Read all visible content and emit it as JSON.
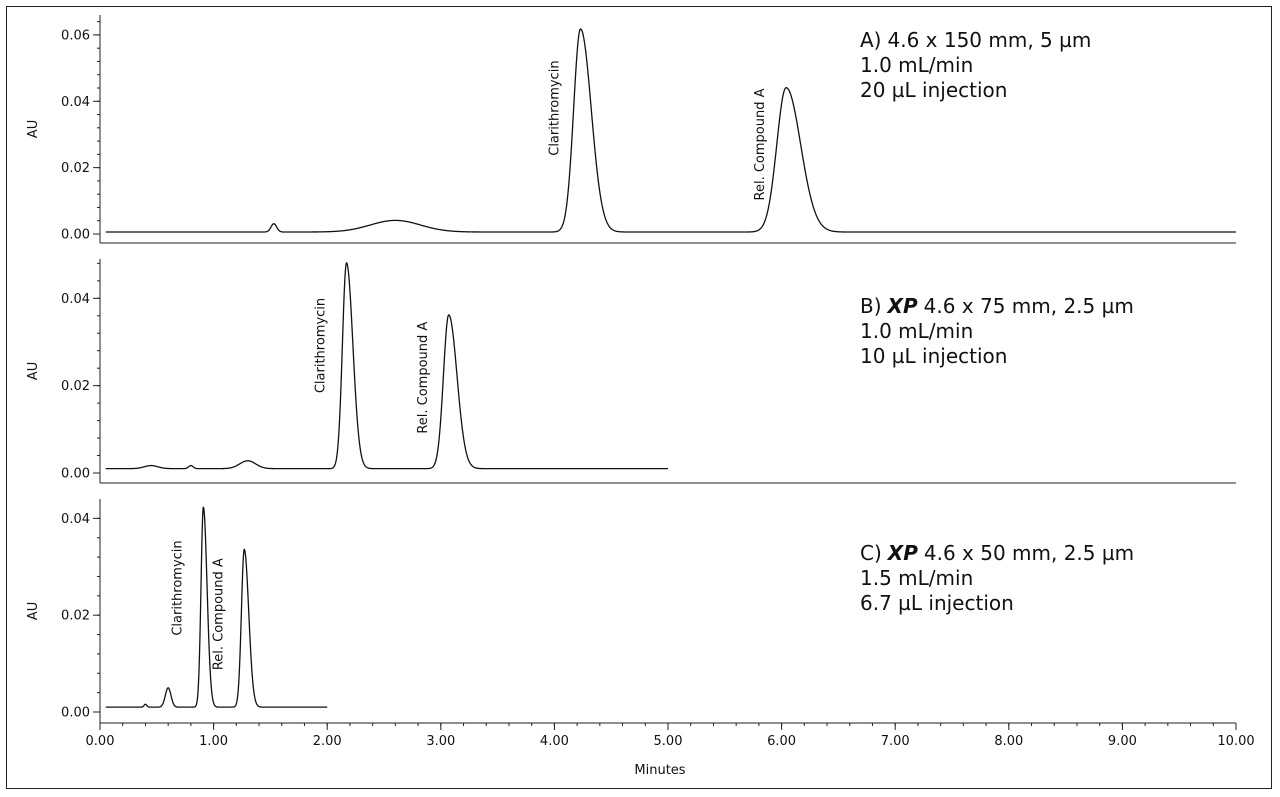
{
  "chart_data": {
    "type": "line",
    "x_axis": {
      "label": "Minutes",
      "range": [
        0,
        10
      ],
      "ticks": [
        0,
        1,
        2,
        3,
        4,
        5,
        6,
        7,
        8,
        9,
        10
      ],
      "tick_labels": [
        "0.00",
        "1.00",
        "2.00",
        "3.00",
        "4.00",
        "5.00",
        "6.00",
        "7.00",
        "8.00",
        "9.00",
        "10.00"
      ]
    },
    "panels": [
      {
        "id": "A",
        "ylabel": "AU",
        "ylim": [
          -0.002,
          0.066
        ],
        "y_ticks": [
          0,
          0.02,
          0.04,
          0.06
        ],
        "y_tick_labels": [
          "0.00",
          "0.02",
          "0.04",
          "0.06"
        ],
        "run_end": 10.0,
        "baseline": 0.0006,
        "conditions": {
          "prefix": "A)",
          "xp": "",
          "text": "4.6 x 150 mm, 5 µm",
          "flow": "1.0 mL/min",
          "injection": "20 µL injection"
        },
        "peaks": [
          {
            "name": "Clarithromycin",
            "rt": 4.23,
            "height": 0.0612
          },
          {
            "name": "Rel. Compound A",
            "rt": 6.04,
            "height": 0.0435
          }
        ],
        "minor_peaks": [
          {
            "rt": 1.53,
            "height": 0.0025,
            "width": 0.025
          },
          {
            "rt": 2.6,
            "height": 0.0035,
            "width": 0.22
          }
        ]
      },
      {
        "id": "B",
        "ylabel": "AU",
        "ylim": [
          -0.0025,
          0.049
        ],
        "y_ticks": [
          0,
          0.02,
          0.04
        ],
        "y_tick_labels": [
          "0.00",
          "0.02",
          "0.04"
        ],
        "run_end": 5.0,
        "baseline": 0.001,
        "conditions": {
          "prefix": "B)",
          "xp": "XP",
          "text": "4.6 x 75 mm, 2.5 µm",
          "flow": "1.0 mL/min",
          "injection": "10 µL injection"
        },
        "peaks": [
          {
            "name": "Clarithromycin",
            "rt": 2.17,
            "height": 0.0471
          },
          {
            "name": "Rel. Compound A",
            "rt": 3.07,
            "height": 0.0352
          }
        ],
        "minor_peaks": [
          {
            "rt": 0.45,
            "height": 0.0007,
            "width": 0.06
          },
          {
            "rt": 0.8,
            "height": 0.0007,
            "width": 0.02
          },
          {
            "rt": 1.3,
            "height": 0.0018,
            "width": 0.07
          }
        ]
      },
      {
        "id": "C",
        "ylabel": "AU",
        "ylim": [
          -0.0015,
          0.044
        ],
        "y_ticks": [
          0,
          0.02,
          0.04
        ],
        "y_tick_labels": [
          "0.00",
          "0.02",
          "0.04"
        ],
        "run_end": 2.0,
        "baseline": 0.001,
        "conditions": {
          "prefix": "C)",
          "xp": "XP",
          "text": "4.6 x 50 mm, 2.5 µm",
          "flow": "1.5 mL/min",
          "injection": "6.7 µL injection"
        },
        "peaks": [
          {
            "name": "Clarithromycin",
            "rt": 0.91,
            "height": 0.0413
          },
          {
            "name": "Rel. Compound A",
            "rt": 1.27,
            "height": 0.0326
          }
        ],
        "minor_peaks": [
          {
            "rt": 0.4,
            "height": 0.0006,
            "width": 0.012
          },
          {
            "rt": 0.6,
            "height": 0.004,
            "width": 0.025
          }
        ]
      }
    ]
  }
}
